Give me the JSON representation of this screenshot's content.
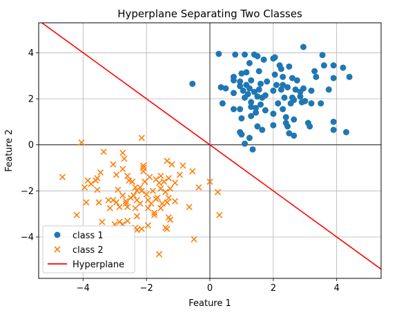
{
  "chart_data": {
    "type": "scatter",
    "title": "Hyperplane Separating Two Classes",
    "xlabel": "Feature 1",
    "ylabel": "Feature 2",
    "xlim": [
      -5.4,
      5.4
    ],
    "ylim": [
      -5.8,
      5.3
    ],
    "xticks": [
      -4,
      -2,
      0,
      2,
      4
    ],
    "yticks": [
      -4,
      -2,
      0,
      2,
      4
    ],
    "xtick_labels": [
      "−4",
      "−2",
      "0",
      "2",
      "4"
    ],
    "ytick_labels": [
      "−4",
      "−2",
      "0",
      "2",
      "4"
    ],
    "grid": true,
    "axis_lines_at_zero": true,
    "legend_position": "lower-left",
    "series": [
      {
        "name": "class 1",
        "marker": "circle",
        "color": "#1f77b4",
        "points": [
          [
            -0.55,
            2.65
          ],
          [
            0.28,
            3.95
          ],
          [
            0.8,
            3.92
          ],
          [
            1.1,
            3.92
          ],
          [
            1.4,
            3.92
          ],
          [
            1.5,
            3.85
          ],
          [
            2.0,
            3.75
          ],
          [
            2.05,
            3.8
          ],
          [
            2.95,
            4.25
          ],
          [
            3.55,
            3.9
          ],
          [
            1.7,
            3.7
          ],
          [
            2.2,
            3.45
          ],
          [
            2.25,
            3.3
          ],
          [
            1.25,
            3.55
          ],
          [
            3.3,
            3.2
          ],
          [
            3.6,
            3.45
          ],
          [
            3.9,
            3.45
          ],
          [
            4.2,
            3.35
          ],
          [
            0.75,
            2.95
          ],
          [
            0.75,
            2.8
          ],
          [
            1.0,
            3.1
          ],
          [
            1.15,
            3.15
          ],
          [
            1.55,
            3.2
          ],
          [
            0.95,
            2.75
          ],
          [
            1.3,
            2.8
          ],
          [
            1.8,
            2.75
          ],
          [
            2.3,
            2.95
          ],
          [
            2.6,
            2.9
          ],
          [
            2.75,
            2.8
          ],
          [
            3.35,
            2.95
          ],
          [
            3.9,
            2.9
          ],
          [
            4.4,
            2.95
          ],
          [
            0.35,
            2.5
          ],
          [
            0.5,
            2.45
          ],
          [
            0.75,
            2.25
          ],
          [
            0.95,
            2.55
          ],
          [
            1.05,
            2.35
          ],
          [
            1.15,
            2.6
          ],
          [
            1.25,
            2.45
          ],
          [
            1.4,
            2.3
          ],
          [
            1.6,
            2.65
          ],
          [
            1.55,
            2.4
          ],
          [
            2.0,
            2.35
          ],
          [
            2.25,
            2.4
          ],
          [
            2.3,
            2.6
          ],
          [
            2.45,
            2.5
          ],
          [
            2.7,
            2.4
          ],
          [
            2.85,
            2.3
          ],
          [
            2.95,
            2.45
          ],
          [
            3.2,
            2.35
          ],
          [
            3.75,
            2.4
          ],
          [
            1.1,
            2.05
          ],
          [
            1.3,
            1.85
          ],
          [
            1.5,
            2.1
          ],
          [
            1.65,
            2.05
          ],
          [
            1.75,
            2.15
          ],
          [
            2.15,
            1.8
          ],
          [
            2.35,
            2.05
          ],
          [
            2.65,
            1.95
          ],
          [
            2.85,
            2.1
          ],
          [
            3.0,
            1.9
          ],
          [
            3.2,
            1.8
          ],
          [
            3.5,
            1.8
          ],
          [
            0.4,
            1.8
          ],
          [
            0.75,
            1.55
          ],
          [
            0.95,
            1.55
          ],
          [
            1.3,
            1.65
          ],
          [
            1.45,
            1.6
          ],
          [
            1.6,
            1.75
          ],
          [
            2.0,
            1.35
          ],
          [
            2.3,
            1.55
          ],
          [
            2.55,
            1.8
          ],
          [
            2.9,
            1.85
          ],
          [
            1.3,
            1.25
          ],
          [
            1.45,
            1.4
          ],
          [
            1.75,
            1.5
          ],
          [
            2.4,
            1.2
          ],
          [
            2.65,
            1.1
          ],
          [
            1.0,
            1.15
          ],
          [
            1.5,
            0.8
          ],
          [
            2.0,
            0.85
          ],
          [
            2.4,
            0.95
          ],
          [
            2.45,
            0.8
          ],
          [
            3.1,
            0.95
          ],
          [
            3.15,
            0.8
          ],
          [
            3.9,
            1.0
          ],
          [
            0.95,
            0.55
          ],
          [
            1.0,
            0.45
          ],
          [
            1.65,
            0.65
          ],
          [
            2.5,
            0.5
          ],
          [
            2.65,
            0.4
          ],
          [
            3.9,
            0.65
          ],
          [
            4.3,
            0.55
          ],
          [
            1.1,
            0.05
          ],
          [
            1.25,
            0.3
          ],
          [
            1.35,
            -0.2
          ],
          [
            2.05,
            3.05
          ],
          [
            2.6,
            2.05
          ],
          [
            1.2,
            2.2
          ],
          [
            2.1,
            2.6
          ],
          [
            2.5,
            3.4
          ]
        ]
      },
      {
        "name": "class 2",
        "marker": "x",
        "color": "#ff7f0e",
        "points": [
          [
            -4.05,
            0.1
          ],
          [
            -2.15,
            0.3
          ],
          [
            -4.65,
            -1.4
          ],
          [
            -3.45,
            -1.2
          ],
          [
            -3.35,
            -0.3
          ],
          [
            -3.05,
            -0.85
          ],
          [
            -2.75,
            -0.35
          ],
          [
            -2.7,
            -0.6
          ],
          [
            -2.75,
            -1.05
          ],
          [
            -2.1,
            -0.9
          ],
          [
            -2.1,
            -1.0
          ],
          [
            -1.35,
            -0.7
          ],
          [
            -1.2,
            -0.85
          ],
          [
            -0.85,
            -0.9
          ],
          [
            -0.55,
            -1.15
          ],
          [
            -3.85,
            -1.55
          ],
          [
            -3.75,
            -1.7
          ],
          [
            -3.6,
            -1.55
          ],
          [
            -3.55,
            -1.45
          ],
          [
            -3.95,
            -1.85
          ],
          [
            -3.55,
            -1.95
          ],
          [
            -2.95,
            -1.3
          ],
          [
            -2.9,
            -1.95
          ],
          [
            -2.6,
            -1.35
          ],
          [
            -2.55,
            -1.55
          ],
          [
            -2.45,
            -1.6
          ],
          [
            -2.35,
            -1.85
          ],
          [
            -2.3,
            -2.0
          ],
          [
            -2.1,
            -1.15
          ],
          [
            -2.05,
            -1.6
          ],
          [
            -1.9,
            -1.4
          ],
          [
            -1.7,
            -1.5
          ],
          [
            -1.55,
            -1.35
          ],
          [
            -1.45,
            -1.6
          ],
          [
            -1.3,
            -1.45
          ],
          [
            -1.1,
            -1.65
          ],
          [
            -0.95,
            -1.3
          ],
          [
            -0.35,
            -1.85
          ],
          [
            0.0,
            -1.6
          ],
          [
            0.25,
            -2.05
          ],
          [
            -3.9,
            -2.5
          ],
          [
            -3.5,
            -2.5
          ],
          [
            -3.2,
            -2.4
          ],
          [
            -3.05,
            -2.4
          ],
          [
            -2.95,
            -2.5
          ],
          [
            -2.75,
            -2.2
          ],
          [
            -2.65,
            -2.55
          ],
          [
            -2.5,
            -2.3
          ],
          [
            -2.4,
            -2.2
          ],
          [
            -2.3,
            -2.4
          ],
          [
            -2.15,
            -2.0
          ],
          [
            -2.0,
            -2.15
          ],
          [
            -1.95,
            -2.4
          ],
          [
            -1.8,
            -2.0
          ],
          [
            -1.65,
            -2.3
          ],
          [
            -1.5,
            -2.55
          ],
          [
            -1.4,
            -2.05
          ],
          [
            -1.3,
            -2.3
          ],
          [
            -1.25,
            -1.9
          ],
          [
            -1.1,
            -2.45
          ],
          [
            -1.55,
            -1.9
          ],
          [
            -1.7,
            -2.35
          ],
          [
            -2.6,
            -2.7
          ],
          [
            -2.35,
            -2.75
          ],
          [
            -2.2,
            -2.55
          ],
          [
            -1.85,
            -2.55
          ],
          [
            -1.75,
            -2.95
          ],
          [
            -1.55,
            -2.75
          ],
          [
            -1.35,
            -2.5
          ],
          [
            -0.65,
            -2.7
          ],
          [
            -4.2,
            -3.05
          ],
          [
            -3.4,
            -3.35
          ],
          [
            -3.15,
            -2.75
          ],
          [
            -3.0,
            -3.45
          ],
          [
            -2.85,
            -3.35
          ],
          [
            -2.75,
            -3.45
          ],
          [
            -2.6,
            -3.3
          ],
          [
            -2.3,
            -3.1
          ],
          [
            -2.15,
            -3.65
          ],
          [
            -1.95,
            -3.5
          ],
          [
            -1.75,
            -3.05
          ],
          [
            -1.3,
            -3.15
          ],
          [
            -1.25,
            -3.25
          ],
          [
            -2.35,
            -3.6
          ],
          [
            -2.3,
            -3.7
          ],
          [
            -1.4,
            -3.6
          ],
          [
            -1.35,
            -3.65
          ],
          [
            -1.6,
            -4.75
          ],
          [
            -0.5,
            -4.1
          ],
          [
            0.3,
            -3.05
          ],
          [
            -2.65,
            -2.45
          ],
          [
            -2.2,
            -1.85
          ],
          [
            -1.6,
            -1.65
          ],
          [
            -1.95,
            -2.75
          ],
          [
            -2.85,
            -2.7
          ]
        ]
      }
    ],
    "line": {
      "name": "Hyperplane",
      "color": "#ff0000",
      "slope": -1,
      "intercept": 0
    }
  }
}
